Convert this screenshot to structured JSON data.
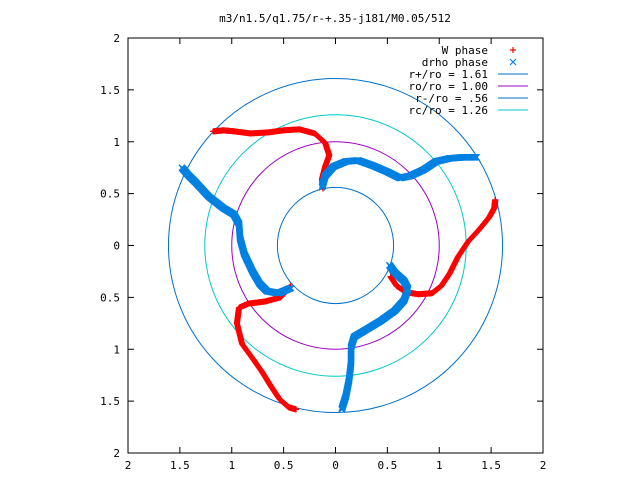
{
  "chart_data": {
    "type": "scatter",
    "title": "m3/n1.5/q1.75/r-+.35-j181/M0.05/512",
    "xlabel": "",
    "ylabel": "",
    "xlim": [
      -2,
      2
    ],
    "ylim": [
      -2,
      2
    ],
    "x_tick_labels": [
      "2",
      "1.5",
      "1",
      "0.5",
      "0",
      "0.5",
      "1",
      "1.5",
      "2"
    ],
    "y_tick_labels": [
      "2",
      "1.5",
      "1",
      "0.5",
      "0",
      "0.5",
      "1",
      "1.5",
      "2"
    ],
    "grid": false,
    "legend_position": "top-right",
    "series": [
      {
        "name": "W phase",
        "marker": "plus",
        "color": "#ff0000",
        "arms": [
          [
            [
              -0.12,
              0.55
            ],
            [
              -0.13,
              0.64
            ],
            [
              -0.1,
              0.76
            ],
            [
              -0.06,
              0.87
            ],
            [
              -0.1,
              0.99
            ],
            [
              -0.2,
              1.08
            ],
            [
              -0.35,
              1.12
            ],
            [
              -0.5,
              1.11
            ],
            [
              -0.65,
              1.09
            ],
            [
              -0.82,
              1.08
            ],
            [
              -0.97,
              1.1
            ],
            [
              -1.08,
              1.11
            ],
            [
              -1.18,
              1.1
            ]
          ],
          [
            [
              0.53,
              -0.3
            ],
            [
              0.59,
              -0.39
            ],
            [
              0.68,
              -0.45
            ],
            [
              0.8,
              -0.47
            ],
            [
              0.93,
              -0.46
            ],
            [
              1.02,
              -0.39
            ],
            [
              1.1,
              -0.27
            ],
            [
              1.18,
              -0.11
            ],
            [
              1.28,
              0.04
            ],
            [
              1.39,
              0.16
            ],
            [
              1.48,
              0.27
            ],
            [
              1.53,
              0.36
            ],
            [
              1.54,
              0.44
            ]
          ],
          [
            [
              -0.43,
              -0.39
            ],
            [
              -0.53,
              -0.5
            ],
            [
              -0.68,
              -0.54
            ],
            [
              -0.84,
              -0.56
            ],
            [
              -0.93,
              -0.6
            ],
            [
              -0.95,
              -0.75
            ],
            [
              -0.9,
              -0.95
            ],
            [
              -0.79,
              -1.1
            ],
            [
              -0.7,
              -1.23
            ],
            [
              -0.62,
              -1.36
            ],
            [
              -0.54,
              -1.48
            ],
            [
              -0.45,
              -1.56
            ],
            [
              -0.38,
              -1.58
            ]
          ]
        ]
      },
      {
        "name": "drho phase",
        "marker": "cross",
        "color": "#0080e0",
        "arms": [
          [
            [
              -0.13,
              0.56
            ],
            [
              -0.1,
              0.67
            ],
            [
              -0.02,
              0.76
            ],
            [
              0.1,
              0.81
            ],
            [
              0.22,
              0.82
            ],
            [
              0.36,
              0.77
            ],
            [
              0.5,
              0.71
            ],
            [
              0.62,
              0.65
            ],
            [
              0.72,
              0.67
            ],
            [
              0.85,
              0.73
            ],
            [
              0.97,
              0.81
            ],
            [
              1.1,
              0.84
            ],
            [
              1.23,
              0.85
            ],
            [
              1.36,
              0.85
            ]
          ],
          [
            [
              0.52,
              -0.19
            ],
            [
              0.57,
              -0.26
            ],
            [
              0.66,
              -0.34
            ],
            [
              0.7,
              -0.42
            ],
            [
              0.66,
              -0.53
            ],
            [
              0.57,
              -0.63
            ],
            [
              0.43,
              -0.73
            ],
            [
              0.28,
              -0.82
            ],
            [
              0.18,
              -0.88
            ],
            [
              0.15,
              -0.98
            ],
            [
              0.15,
              -1.13
            ],
            [
              0.13,
              -1.3
            ],
            [
              0.1,
              -1.45
            ],
            [
              0.06,
              -1.58
            ]
          ],
          [
            [
              -0.43,
              -0.41
            ],
            [
              -0.55,
              -0.46
            ],
            [
              -0.66,
              -0.44
            ],
            [
              -0.73,
              -0.37
            ],
            [
              -0.8,
              -0.25
            ],
            [
              -0.88,
              -0.08
            ],
            [
              -0.92,
              0.07
            ],
            [
              -0.93,
              0.21
            ],
            [
              -0.98,
              0.3
            ],
            [
              -1.08,
              0.36
            ],
            [
              -1.22,
              0.47
            ],
            [
              -1.35,
              0.61
            ],
            [
              -1.42,
              0.68
            ],
            [
              -1.48,
              0.75
            ]
          ]
        ]
      },
      {
        "name": "r+/ro = 1.61",
        "type": "circle",
        "radius": 1.61,
        "color": "#0070c8"
      },
      {
        "name": "ro/ro = 1.00",
        "type": "circle",
        "radius": 1.0,
        "color": "#9a00c0"
      },
      {
        "name": "r-/ro = .56",
        "type": "circle",
        "radius": 0.56,
        "color": "#0070c8"
      },
      {
        "name": "rc/ro = 1.26",
        "type": "circle",
        "radius": 1.26,
        "color": "#00c8c8"
      }
    ]
  }
}
